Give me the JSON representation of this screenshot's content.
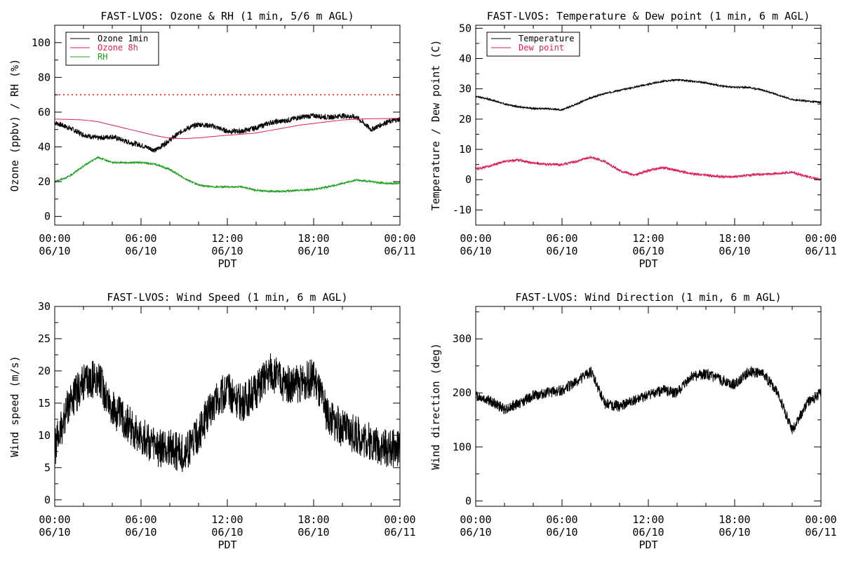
{
  "chart_data": [
    {
      "type": "line",
      "title": "FAST-LVOS: Ozone & RH (1 min, 5/6 m AGL)",
      "xlabel": "PDT",
      "ylabel": "Ozone (ppbv) / RH (%)",
      "x_ticks": [
        {
          "time": "00:00",
          "date": "06/10"
        },
        {
          "time": "06:00",
          "date": "06/10"
        },
        {
          "time": "12:00",
          "date": "06/10"
        },
        {
          "time": "18:00",
          "date": "06/10"
        },
        {
          "time": "00:00",
          "date": "06/11"
        }
      ],
      "xlim": [
        "06/10 00:00",
        "06/11 00:00"
      ],
      "ylim": [
        -5,
        110
      ],
      "y_ticks": [
        0,
        20,
        40,
        60,
        80,
        100
      ],
      "legend_position": "top-left",
      "reference_line": {
        "y": 70,
        "style": "dotted",
        "color": "#ff0000"
      },
      "x_hours": [
        0,
        1,
        2,
        3,
        4,
        5,
        6,
        7,
        8,
        9,
        10,
        11,
        12,
        13,
        14,
        15,
        16,
        17,
        18,
        19,
        20,
        21,
        22,
        23,
        24
      ],
      "series": [
        {
          "name": "Ozone 1min",
          "color": "#000000",
          "noise": 1.5,
          "values": [
            54,
            51,
            47,
            45,
            46,
            43,
            41,
            38,
            44,
            50,
            53,
            52,
            49,
            49,
            51,
            54,
            55,
            57,
            58,
            57,
            58,
            57,
            50,
            54,
            56
          ]
        },
        {
          "name": "Ozone 8h",
          "color": "#dd1e5a",
          "noise": 0,
          "values": [
            56,
            55.8,
            55.5,
            54.5,
            52.5,
            50.5,
            48.5,
            46.5,
            45,
            44.8,
            45.2,
            46,
            46.7,
            47.3,
            48,
            49.5,
            51,
            52.5,
            53.5,
            54.5,
            55.5,
            56,
            56.2,
            56.3,
            56.5
          ]
        },
        {
          "name": "RH",
          "color": "#22a022",
          "noise": 0.5,
          "values": [
            20,
            23,
            29,
            34,
            31,
            31,
            31,
            30,
            27,
            22,
            18,
            17,
            17,
            17,
            15,
            14.5,
            14.5,
            15,
            15.5,
            17,
            19,
            21,
            20,
            19,
            19
          ]
        }
      ]
    },
    {
      "type": "line",
      "title": "FAST-LVOS: Temperature & Dew point (1 min, 6 m AGL)",
      "xlabel": "PDT",
      "ylabel": "Temperature / Dew point (C)",
      "x_ticks": [
        {
          "time": "00:00",
          "date": "06/10"
        },
        {
          "time": "06:00",
          "date": "06/10"
        },
        {
          "time": "12:00",
          "date": "06/10"
        },
        {
          "time": "18:00",
          "date": "06/10"
        },
        {
          "time": "00:00",
          "date": "06/11"
        }
      ],
      "xlim": [
        "06/10 00:00",
        "06/11 00:00"
      ],
      "ylim": [
        -15,
        51
      ],
      "y_ticks": [
        -10,
        0,
        10,
        20,
        30,
        40,
        50
      ],
      "legend_position": "top-left",
      "x_hours": [
        0,
        1,
        2,
        3,
        4,
        5,
        6,
        7,
        8,
        9,
        10,
        11,
        12,
        13,
        14,
        15,
        16,
        17,
        18,
        19,
        20,
        21,
        22,
        23,
        24
      ],
      "series": [
        {
          "name": "Temperature",
          "color": "#000000",
          "noise": 0.25,
          "values": [
            27.5,
            26.5,
            25,
            24,
            23.5,
            23.5,
            23,
            25,
            27,
            28.5,
            29.5,
            30.5,
            31.5,
            32.5,
            33,
            32.5,
            32,
            31,
            30.5,
            30.5,
            29.5,
            28,
            26.5,
            26,
            25.5
          ]
        },
        {
          "name": "Dew point",
          "color": "#dd1e5a",
          "noise": 0.4,
          "values": [
            3.5,
            4.5,
            6,
            6.5,
            5.5,
            5,
            5,
            6,
            7.5,
            6,
            3,
            1.5,
            3,
            4,
            3,
            2,
            1.5,
            1,
            1,
            1.5,
            1.8,
            2,
            2.5,
            1,
            0
          ]
        }
      ]
    },
    {
      "type": "line",
      "title": "FAST-LVOS: Wind Speed (1 min, 6 m AGL)",
      "xlabel": "PDT",
      "ylabel": "Wind speed (m/s)",
      "x_ticks": [
        {
          "time": "00:00",
          "date": "06/10"
        },
        {
          "time": "06:00",
          "date": "06/10"
        },
        {
          "time": "12:00",
          "date": "06/10"
        },
        {
          "time": "18:00",
          "date": "06/10"
        },
        {
          "time": "00:00",
          "date": "06/11"
        }
      ],
      "xlim": [
        "06/10 00:00",
        "06/11 00:00"
      ],
      "ylim": [
        -1,
        30
      ],
      "y_ticks": [
        0,
        5,
        10,
        15,
        20,
        25,
        30
      ],
      "legend_position": "none",
      "x_hours": [
        0,
        1,
        2,
        3,
        4,
        5,
        6,
        7,
        8,
        9,
        10,
        11,
        12,
        13,
        14,
        15,
        16,
        17,
        18,
        19,
        20,
        21,
        22,
        23,
        24
      ],
      "series": [
        {
          "name": "",
          "color": "#000000",
          "noise": 3,
          "values": [
            8,
            15,
            18,
            19,
            14,
            12,
            10,
            8,
            8,
            7,
            10,
            15,
            17,
            15,
            17,
            20,
            18,
            18,
            19,
            13,
            11,
            10,
            9,
            8,
            8
          ]
        }
      ]
    },
    {
      "type": "line",
      "title": "FAST-LVOS: Wind Direction (1 min, 6 m AGL)",
      "xlabel": "PDT",
      "ylabel": "Wind direction (deg)",
      "x_ticks": [
        {
          "time": "00:00",
          "date": "06/10"
        },
        {
          "time": "06:00",
          "date": "06/10"
        },
        {
          "time": "12:00",
          "date": "06/10"
        },
        {
          "time": "18:00",
          "date": "06/10"
        },
        {
          "time": "00:00",
          "date": "06/11"
        }
      ],
      "xlim": [
        "06/10 00:00",
        "06/11 00:00"
      ],
      "ylim": [
        -10,
        360
      ],
      "y_ticks": [
        0,
        100,
        200,
        300
      ],
      "legend_position": "none",
      "x_hours": [
        0,
        1,
        2,
        3,
        4,
        5,
        6,
        7,
        8,
        9,
        10,
        11,
        12,
        13,
        14,
        15,
        16,
        17,
        18,
        19,
        20,
        21,
        22,
        23,
        24
      ],
      "series": [
        {
          "name": "",
          "color": "#000000",
          "noise": 10,
          "values": [
            195,
            185,
            170,
            180,
            195,
            200,
            205,
            220,
            240,
            180,
            175,
            185,
            195,
            205,
            200,
            230,
            235,
            225,
            215,
            240,
            235,
            200,
            130,
            180,
            200
          ]
        }
      ]
    }
  ]
}
